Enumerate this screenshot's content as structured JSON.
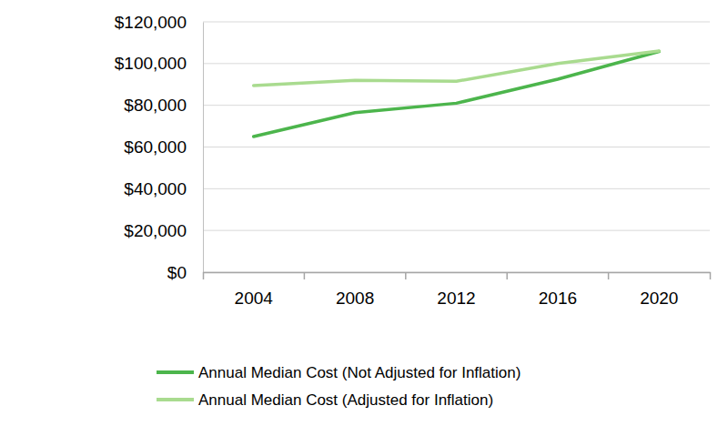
{
  "chart_data": {
    "type": "line",
    "categories": [
      "2004",
      "2008",
      "2012",
      "2016",
      "2020"
    ],
    "series": [
      {
        "name": "Annual Median Cost (Not Adjusted for Inflation)",
        "color": "#4cb54c",
        "values": [
          65000,
          76500,
          81000,
          92500,
          105800
        ]
      },
      {
        "name": "Annual Median Cost (Adjusted for Inflation)",
        "color": "#a9db8f",
        "values": [
          89500,
          92000,
          91500,
          100000,
          106000
        ]
      }
    ],
    "ylim": [
      0,
      120000
    ],
    "yticks": [
      {
        "value": 0,
        "label": "$0"
      },
      {
        "value": 20000,
        "label": "$20,000"
      },
      {
        "value": 40000,
        "label": "$40,000"
      },
      {
        "value": 60000,
        "label": "$60,000"
      },
      {
        "value": 80000,
        "label": "$80,000"
      },
      {
        "value": 100000,
        "label": "$100,000"
      },
      {
        "value": 120000,
        "label": "$120,000"
      }
    ],
    "grid": true,
    "legend": "bottom"
  }
}
